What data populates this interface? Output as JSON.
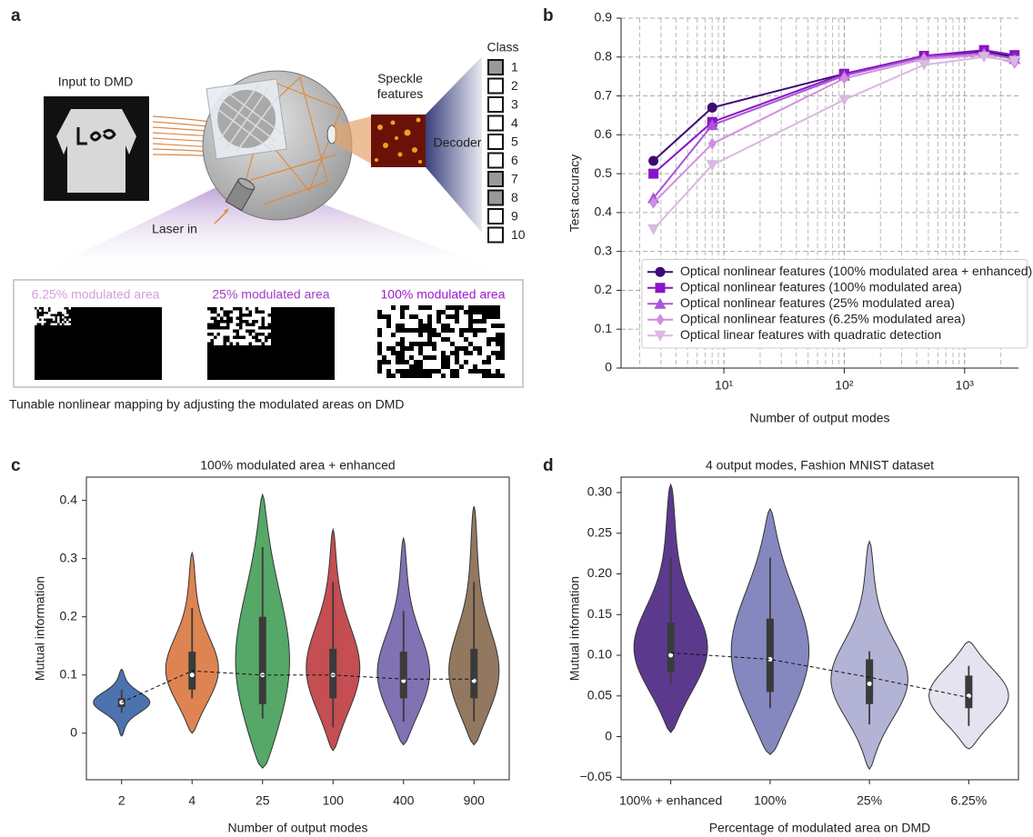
{
  "panel_labels": [
    "a",
    "b",
    "c",
    "d"
  ],
  "diagram": {
    "input_label": "Input to DMD",
    "speckle_label": "Speckle features",
    "decoder_label": "Decoder",
    "class_label": "Class",
    "classes": [
      "1",
      "2",
      "3",
      "4",
      "5",
      "6",
      "7",
      "8",
      "9",
      "10"
    ],
    "laser_label": "Laser in",
    "modulation_labels": [
      "6.25% modulated area",
      "25% modulated area",
      "100% modulated area"
    ],
    "caption": "Tunable nonlinear mapping by adjusting the modulated areas on DMD"
  },
  "chart_data": [
    {
      "type": "line",
      "x_label": "Number of output modes",
      "y_label": "Test accuracy",
      "x": [
        2.6,
        8,
        100,
        460,
        1450,
        2600
      ],
      "series": [
        {
          "name": "Optical nonlinear features (100% modulated area + enhanced)",
          "color": "#3d0a73",
          "marker": "o",
          "values": [
            0.533,
            0.67,
            0.757,
            0.803,
            0.815,
            0.8
          ]
        },
        {
          "name": "Optical nonlinear features (100% modulated area)",
          "color": "#8a14c8",
          "marker": "s",
          "values": [
            0.5,
            0.633,
            0.757,
            0.803,
            0.818,
            0.805
          ]
        },
        {
          "name": "Optical nonlinear features (25% modulated area)",
          "color": "#a855d6",
          "marker": "^",
          "values": [
            0.437,
            0.625,
            0.752,
            0.8,
            0.81,
            0.795
          ]
        },
        {
          "name": "Optical nonlinear features (6.25% modulated area)",
          "color": "#d08ee0",
          "marker": "d",
          "values": [
            0.425,
            0.577,
            0.745,
            0.795,
            0.805,
            0.785
          ]
        },
        {
          "name": "Optical linear features with quadratic detection",
          "color": "#dab8e0",
          "marker": "v",
          "values": [
            0.357,
            0.522,
            0.69,
            0.78,
            0.8,
            0.79
          ]
        }
      ],
      "xlim": [
        1.4,
        2800
      ],
      "ylim": [
        0,
        0.9
      ],
      "xticks": [
        {
          "value": 10,
          "label": "10¹"
        },
        {
          "value": 100,
          "label": "10²"
        },
        {
          "value": 1000,
          "label": "10³"
        }
      ],
      "yticks": [
        0,
        0.1,
        0.2,
        0.3,
        0.4,
        0.5,
        0.6,
        0.7,
        0.8,
        0.9
      ],
      "log_x": true,
      "grid": true,
      "minor_grid": true,
      "legend": "lower right"
    },
    {
      "type": "violin",
      "title": "100% modulated area + enhanced",
      "x_label": "Number of output modes",
      "y_label": "Mutual information",
      "categories": [
        "2",
        "4",
        "25",
        "100",
        "400",
        "900"
      ],
      "colors": [
        "#4c72b0",
        "#dd8452",
        "#55a868",
        "#c44e52",
        "#8172b3",
        "#937860"
      ],
      "min": [
        -0.005,
        0,
        -0.06,
        -0.03,
        -0.02,
        -0.02
      ],
      "max": [
        0.11,
        0.31,
        0.41,
        0.35,
        0.335,
        0.39
      ],
      "q1": [
        0.045,
        0.075,
        0.05,
        0.06,
        0.06,
        0.06
      ],
      "median": [
        0.053,
        0.1,
        0.1,
        0.1,
        0.09,
        0.09
      ],
      "q3": [
        0.06,
        0.14,
        0.2,
        0.145,
        0.14,
        0.145
      ],
      "whisker_low": [
        0.035,
        0.06,
        0.025,
        0.01,
        0.02,
        0.02
      ],
      "whisker_high": [
        0.075,
        0.215,
        0.32,
        0.26,
        0.21,
        0.26
      ],
      "mean": [
        0.053,
        0.107,
        0.1,
        0.1,
        0.093,
        0.093
      ],
      "ylim": [
        -0.08,
        0.44
      ],
      "yticks": [
        0,
        0.1,
        0.2,
        0.3,
        0.4
      ]
    },
    {
      "type": "violin",
      "title": "4 output modes, Fashion MNIST dataset",
      "x_label": "Percentage of modulated area on DMD",
      "y_label": "Mutual information",
      "categories": [
        "100% + enhanced",
        "100%",
        "25%",
        "6.25%"
      ],
      "colors": [
        "#5b3a8e",
        "#8587bf",
        "#b3b3d5",
        "#e4e3ef"
      ],
      "min": [
        0.005,
        -0.022,
        -0.04,
        -0.015
      ],
      "max": [
        0.31,
        0.28,
        0.24,
        0.117
      ],
      "q1": [
        0.08,
        0.055,
        0.04,
        0.035
      ],
      "median": [
        0.1,
        0.095,
        0.065,
        0.05
      ],
      "q3": [
        0.14,
        0.145,
        0.095,
        0.075
      ],
      "whisker_low": [
        0.065,
        0.035,
        0.015,
        0.013
      ],
      "whisker_high": [
        0.22,
        0.22,
        0.105,
        0.087
      ],
      "mean": [
        0.103,
        0.095,
        0.073,
        0.048
      ],
      "ylim": [
        -0.053,
        0.319
      ],
      "yticks": [
        {
          "value": -0.05,
          "label": "−0.05"
        },
        0,
        0.05,
        {
          "value": 0.1,
          "label": "0.10"
        },
        0.15,
        {
          "value": 0.2,
          "label": "0.20"
        },
        0.25,
        {
          "value": 0.3,
          "label": "0.30"
        }
      ]
    }
  ]
}
